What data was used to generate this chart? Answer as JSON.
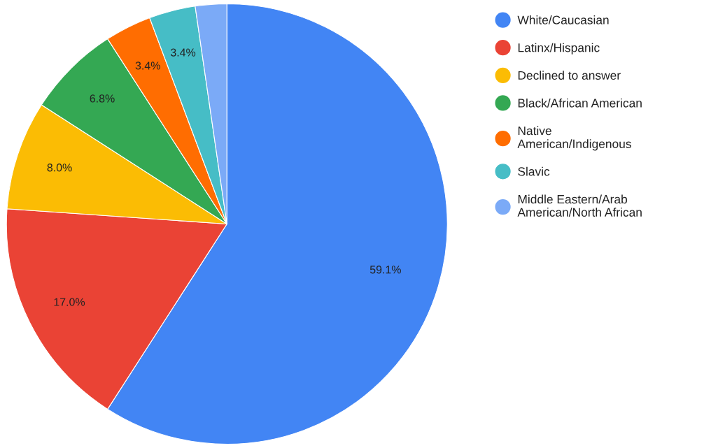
{
  "chart_data": {
    "type": "pie",
    "categories": [
      "White/Caucasian",
      "Latinx/Hispanic",
      "Declined to answer",
      "Black/African American",
      "Native American/Indigenous",
      "Slavic",
      "Middle Eastern/Arab American/North African"
    ],
    "values": [
      59.1,
      17.0,
      8.0,
      6.8,
      3.4,
      3.4,
      2.3
    ],
    "colors": [
      "#4285f4",
      "#ea4335",
      "#fbbc04",
      "#34a853",
      "#ff6d01",
      "#46bdc6",
      "#7baaf7"
    ],
    "value_labels": [
      "59.1%",
      "17.0%",
      "8.0%",
      "6.8%",
      "3.4%",
      "3.4%",
      null
    ],
    "legend": "right"
  }
}
